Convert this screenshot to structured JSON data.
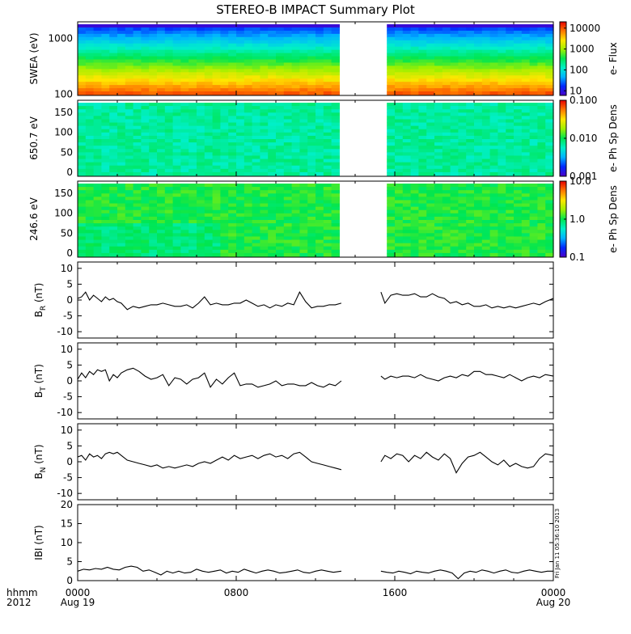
{
  "title": "STEREO-B IMPACT Summary Plot",
  "colors": {
    "foreground": "#000000",
    "background": "#ffffff",
    "rainbow": [
      "#4b00c8",
      "#0028ff",
      "#00b4ff",
      "#00f0c8",
      "#00e650",
      "#a0f000",
      "#ffe600",
      "#ff7800",
      "#e60000"
    ]
  },
  "time_axis": {
    "ticks": [
      {
        "top": "0000",
        "bottom": "Aug 19"
      },
      {
        "top": "0800",
        "bottom": ""
      },
      {
        "top": "1600",
        "bottom": ""
      },
      {
        "top": "0000",
        "bottom": "Aug 20"
      }
    ],
    "left_labels": {
      "top": "hhmm",
      "bottom": "2012"
    },
    "range_hours": [
      0,
      24
    ],
    "data_gap_hours": [
      13.3,
      15.3
    ]
  },
  "stamp": "Fri Jan 11 05:36:10 2013",
  "chart_data": [
    {
      "type": "heatmap",
      "ylabel": "SWEA (eV)",
      "yscale": "log",
      "ylim": [
        95,
        2000
      ],
      "yticks": [
        "1000",
        "100"
      ],
      "colorbar": {
        "label": "e- Flux",
        "scale": "log",
        "range": [
          6,
          20000
        ],
        "ticks": [
          "10000",
          "1000",
          "100",
          "10"
        ]
      }
    },
    {
      "type": "heatmap",
      "ylabel": "650.7 eV",
      "ylim": [
        -10,
        180
      ],
      "yticks": [
        "150",
        "100",
        "50",
        "0"
      ],
      "colorbar": {
        "label": "e- Ph Sp Dens",
        "scale": "log",
        "range": [
          0.001,
          0.1
        ],
        "ticks": [
          "0.100",
          "0.010",
          "0.001"
        ]
      }
    },
    {
      "type": "heatmap",
      "ylabel": "246.6 eV",
      "ylim": [
        -10,
        180
      ],
      "yticks": [
        "150",
        "100",
        "50",
        "0"
      ],
      "colorbar": {
        "label": "e- Ph Sp Dens",
        "scale": "log",
        "range": [
          0.1,
          10
        ],
        "ticks": [
          "10.0",
          "1.0",
          "0.1"
        ]
      }
    },
    {
      "type": "line",
      "ylabel": "B",
      "ylabel_sub": "R",
      "ylabel_unit": "(nT)",
      "ylim": [
        -12,
        12
      ],
      "yticks": [
        "10",
        "5",
        "0",
        "-5",
        "-10"
      ],
      "x": [
        0,
        0.2,
        0.4,
        0.6,
        0.8,
        1.0,
        1.2,
        1.4,
        1.6,
        1.8,
        2.0,
        2.2,
        2.5,
        2.8,
        3.1,
        3.4,
        3.7,
        4.0,
        4.3,
        4.6,
        4.9,
        5.2,
        5.5,
        5.8,
        6.1,
        6.4,
        6.7,
        7.0,
        7.3,
        7.6,
        7.9,
        8.2,
        8.5,
        8.8,
        9.1,
        9.4,
        9.7,
        10.0,
        10.3,
        10.6,
        10.9,
        11.2,
        11.5,
        11.8,
        12.1,
        12.4,
        12.7,
        13.0,
        13.3,
        null,
        15.3,
        15.5,
        15.8,
        16.1,
        16.4,
        16.7,
        17.0,
        17.3,
        17.6,
        17.9,
        18.2,
        18.5,
        18.8,
        19.1,
        19.4,
        19.7,
        20.0,
        20.3,
        20.6,
        20.9,
        21.2,
        21.5,
        21.8,
        22.1,
        22.4,
        22.7,
        23.0,
        23.3,
        23.6,
        24.0
      ],
      "y": [
        0.5,
        1.0,
        2.5,
        0.0,
        1.5,
        0.5,
        -0.5,
        1.0,
        0.0,
        0.5,
        -0.5,
        -1.0,
        -3.0,
        -2.0,
        -2.5,
        -2.0,
        -1.5,
        -1.5,
        -1.0,
        -1.5,
        -2.0,
        -2.0,
        -1.5,
        -2.5,
        -1.0,
        1.0,
        -1.5,
        -1.0,
        -1.5,
        -1.5,
        -1.0,
        -1.0,
        0.0,
        -1.0,
        -2.0,
        -1.5,
        -2.5,
        -1.5,
        -2.0,
        -1.0,
        -1.5,
        2.5,
        -0.5,
        -2.5,
        -2.0,
        -2.0,
        -1.5,
        -1.5,
        -1.0,
        null,
        2.5,
        -1.0,
        1.5,
        2.0,
        1.5,
        1.5,
        2.0,
        1.0,
        1.0,
        2.0,
        1.0,
        0.5,
        -1.0,
        -0.5,
        -1.5,
        -1.0,
        -2.0,
        -2.0,
        -1.5,
        -2.5,
        -2.0,
        -2.5,
        -2.0,
        -2.5,
        -2.0,
        -1.5,
        -1.0,
        -1.5,
        -0.5,
        0.5
      ]
    },
    {
      "type": "line",
      "ylabel": "B",
      "ylabel_sub": "T",
      "ylabel_unit": "(nT)",
      "ylim": [
        -12,
        12
      ],
      "yticks": [
        "10",
        "5",
        "0",
        "-5",
        "-10"
      ],
      "x": [
        0,
        0.2,
        0.4,
        0.6,
        0.8,
        1.0,
        1.2,
        1.4,
        1.6,
        1.8,
        2.0,
        2.2,
        2.5,
        2.8,
        3.1,
        3.4,
        3.7,
        4.0,
        4.3,
        4.6,
        4.9,
        5.2,
        5.5,
        5.8,
        6.1,
        6.4,
        6.7,
        7.0,
        7.3,
        7.6,
        7.9,
        8.2,
        8.5,
        8.8,
        9.1,
        9.4,
        9.7,
        10.0,
        10.3,
        10.6,
        10.9,
        11.2,
        11.5,
        11.8,
        12.1,
        12.4,
        12.7,
        13.0,
        13.3,
        null,
        15.3,
        15.5,
        15.8,
        16.1,
        16.4,
        16.7,
        17.0,
        17.3,
        17.6,
        17.9,
        18.2,
        18.5,
        18.8,
        19.1,
        19.4,
        19.7,
        20.0,
        20.3,
        20.6,
        20.9,
        21.2,
        21.5,
        21.8,
        22.1,
        22.4,
        22.7,
        23.0,
        23.3,
        23.6,
        24.0
      ],
      "y": [
        0.5,
        2.5,
        1.0,
        3.0,
        2.0,
        3.5,
        3.0,
        3.5,
        0.0,
        2.0,
        1.0,
        2.5,
        3.5,
        4.0,
        3.0,
        1.5,
        0.5,
        1.0,
        2.0,
        -1.5,
        1.0,
        0.5,
        -1.0,
        0.5,
        1.0,
        2.5,
        -2.0,
        0.5,
        -1.0,
        1.0,
        2.5,
        -1.5,
        -1.0,
        -1.0,
        -2.0,
        -1.5,
        -1.0,
        0.0,
        -1.5,
        -1.0,
        -1.0,
        -1.5,
        -1.5,
        -0.5,
        -1.5,
        -2.0,
        -1.0,
        -1.5,
        0.0,
        null,
        1.5,
        0.5,
        1.5,
        1.0,
        1.5,
        1.5,
        1.0,
        2.0,
        1.0,
        0.5,
        0.0,
        1.0,
        1.5,
        1.0,
        2.0,
        1.5,
        3.0,
        3.0,
        2.0,
        2.0,
        1.5,
        1.0,
        2.0,
        1.0,
        0.0,
        1.0,
        1.5,
        1.0,
        2.0,
        1.5
      ]
    },
    {
      "type": "line",
      "ylabel": "B",
      "ylabel_sub": "N",
      "ylabel_unit": "(nT)",
      "ylim": [
        -12,
        12
      ],
      "yticks": [
        "10",
        "5",
        "0",
        "-5",
        "-10"
      ],
      "x": [
        0,
        0.2,
        0.4,
        0.6,
        0.8,
        1.0,
        1.2,
        1.4,
        1.6,
        1.8,
        2.0,
        2.2,
        2.5,
        2.8,
        3.1,
        3.4,
        3.7,
        4.0,
        4.3,
        4.6,
        4.9,
        5.2,
        5.5,
        5.8,
        6.1,
        6.4,
        6.7,
        7.0,
        7.3,
        7.6,
        7.9,
        8.2,
        8.5,
        8.8,
        9.1,
        9.4,
        9.7,
        10.0,
        10.3,
        10.6,
        10.9,
        11.2,
        11.5,
        11.8,
        12.1,
        12.4,
        12.7,
        13.0,
        13.3,
        null,
        15.3,
        15.5,
        15.8,
        16.1,
        16.4,
        16.7,
        17.0,
        17.3,
        17.6,
        17.9,
        18.2,
        18.5,
        18.8,
        19.1,
        19.4,
        19.7,
        20.0,
        20.3,
        20.6,
        20.9,
        21.2,
        21.5,
        21.8,
        22.1,
        22.4,
        22.7,
        23.0,
        23.3,
        23.6,
        24.0
      ],
      "y": [
        1.5,
        2.0,
        0.5,
        2.5,
        1.5,
        2.0,
        1.0,
        2.5,
        3.0,
        2.5,
        3.0,
        2.0,
        0.5,
        0.0,
        -0.5,
        -1.0,
        -1.5,
        -1.0,
        -2.0,
        -1.5,
        -2.0,
        -1.5,
        -1.0,
        -1.5,
        -0.5,
        0.0,
        -0.5,
        0.5,
        1.5,
        0.5,
        2.0,
        1.0,
        1.5,
        2.0,
        1.0,
        2.0,
        2.5,
        1.5,
        2.0,
        1.0,
        2.5,
        3.0,
        1.5,
        0.0,
        -0.5,
        -1.0,
        -1.5,
        -2.0,
        -2.5,
        null,
        0.0,
        2.0,
        1.0,
        2.5,
        2.0,
        0.0,
        2.0,
        1.0,
        3.0,
        1.5,
        0.5,
        2.5,
        1.0,
        -3.5,
        -0.5,
        1.5,
        2.0,
        3.0,
        1.5,
        0.0,
        -1.0,
        0.5,
        -1.5,
        -0.5,
        -1.5,
        -2.0,
        -1.5,
        1.0,
        2.5,
        2.0
      ]
    },
    {
      "type": "line",
      "ylabel": "IBI",
      "ylabel_unit": "(nT)",
      "ylim": [
        0,
        20
      ],
      "yticks": [
        "20",
        "15",
        "10",
        "5",
        "0"
      ],
      "x": [
        0,
        0.3,
        0.6,
        0.9,
        1.2,
        1.5,
        1.8,
        2.1,
        2.4,
        2.7,
        3.0,
        3.3,
        3.6,
        3.9,
        4.2,
        4.5,
        4.8,
        5.1,
        5.4,
        5.7,
        6.0,
        6.3,
        6.6,
        6.9,
        7.2,
        7.5,
        7.8,
        8.1,
        8.4,
        8.7,
        9.0,
        9.3,
        9.6,
        9.9,
        10.2,
        10.5,
        10.8,
        11.1,
        11.4,
        11.7,
        12.0,
        12.3,
        12.6,
        12.9,
        13.3,
        null,
        15.3,
        15.6,
        15.9,
        16.2,
        16.5,
        16.8,
        17.1,
        17.4,
        17.7,
        18.0,
        18.3,
        18.6,
        18.9,
        19.2,
        19.5,
        19.8,
        20.1,
        20.4,
        20.7,
        21.0,
        21.3,
        21.6,
        21.9,
        22.2,
        22.5,
        22.8,
        23.1,
        23.4,
        23.7,
        24.0
      ],
      "y": [
        2.5,
        3.0,
        2.8,
        3.2,
        3.0,
        3.5,
        3.0,
        2.8,
        3.5,
        3.8,
        3.5,
        2.5,
        2.8,
        2.2,
        1.5,
        2.5,
        2.0,
        2.5,
        2.0,
        2.2,
        3.0,
        2.5,
        2.2,
        2.5,
        2.8,
        2.0,
        2.5,
        2.2,
        3.0,
        2.5,
        2.0,
        2.5,
        2.8,
        2.5,
        2.0,
        2.2,
        2.5,
        2.8,
        2.2,
        2.0,
        2.5,
        2.8,
        2.5,
        2.2,
        2.5,
        null,
        2.5,
        2.2,
        2.0,
        2.5,
        2.2,
        1.8,
        2.5,
        2.2,
        2.0,
        2.5,
        2.8,
        2.5,
        2.0,
        0.5,
        2.0,
        2.5,
        2.2,
        2.8,
        2.5,
        2.0,
        2.5,
        2.8,
        2.2,
        2.0,
        2.5,
        2.8,
        2.5,
        2.2,
        2.5,
        2.5
      ]
    }
  ]
}
